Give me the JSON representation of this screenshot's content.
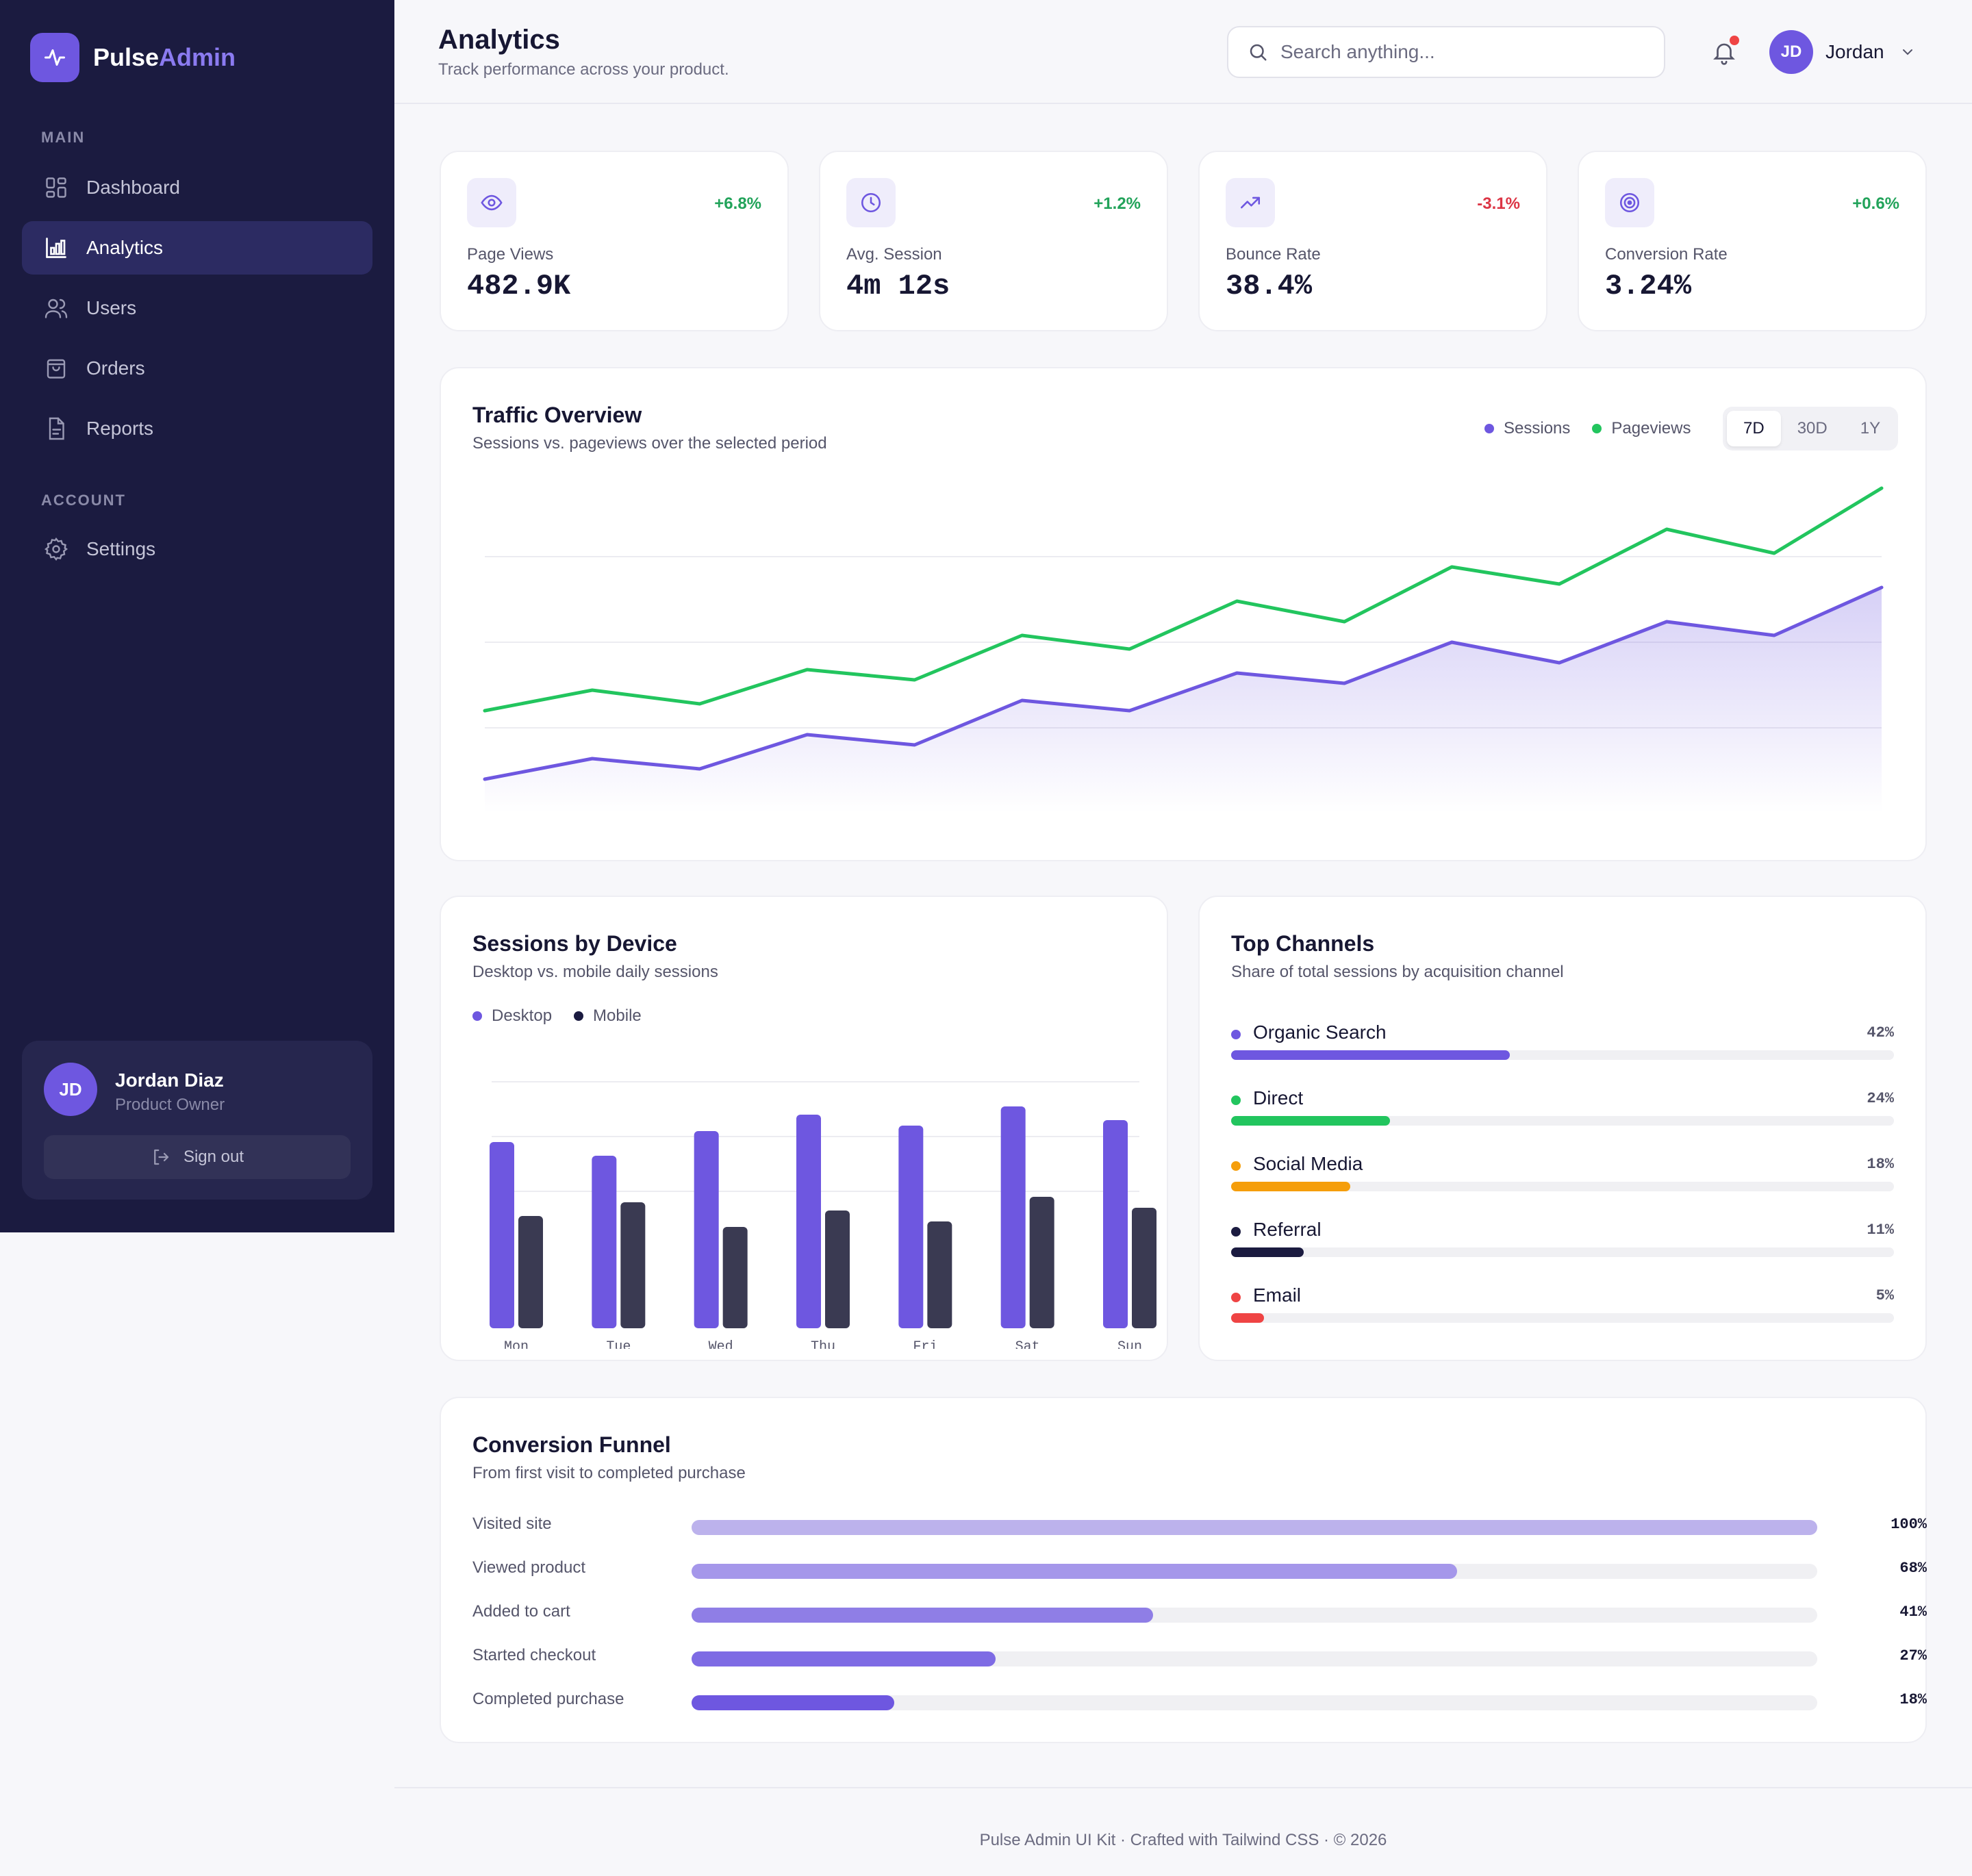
{
  "brand": {
    "name_part1": "Pulse",
    "name_part2": "Admin"
  },
  "sidebar": {
    "sections": [
      {
        "title": "MAIN",
        "items": [
          {
            "label": "Dashboard",
            "icon": "grid-icon"
          },
          {
            "label": "Analytics",
            "icon": "bar-chart-icon",
            "active": true
          },
          {
            "label": "Users",
            "icon": "users-icon"
          },
          {
            "label": "Orders",
            "icon": "shopping-bag-icon"
          },
          {
            "label": "Reports",
            "icon": "document-icon"
          }
        ]
      },
      {
        "title": "ACCOUNT",
        "items": [
          {
            "label": "Settings",
            "icon": "gear-icon"
          }
        ]
      }
    ],
    "user": {
      "initials": "JD",
      "name": "Jordan Diaz",
      "role": "Product Owner",
      "signout_label": "Sign out"
    }
  },
  "header": {
    "title": "Analytics",
    "subtitle": "Track performance across your product.",
    "search_placeholder": "Search anything...",
    "has_notification": true,
    "user_initials": "JD",
    "user_name": "Jordan"
  },
  "kpis": [
    {
      "label": "Page Views",
      "value": "482.9K",
      "delta": "+6.8%",
      "trend": "up",
      "icon": "eye-icon"
    },
    {
      "label": "Avg. Session",
      "value": "4m 12s",
      "delta": "+1.2%",
      "trend": "up",
      "icon": "clock-icon"
    },
    {
      "label": "Bounce Rate",
      "value": "38.4%",
      "delta": "-3.1%",
      "trend": "down",
      "icon": "trending-up-icon"
    },
    {
      "label": "Conversion Rate",
      "value": "3.24%",
      "delta": "+0.6%",
      "trend": "up",
      "icon": "target-icon"
    }
  ],
  "traffic": {
    "title": "Traffic Overview",
    "subtitle": "Sessions vs. pageviews over the selected period",
    "legend": [
      "Sessions",
      "Pageviews"
    ],
    "ranges": [
      "7D",
      "30D",
      "1Y"
    ],
    "selected_range": "7D"
  },
  "devices": {
    "title": "Sessions by Device",
    "subtitle": "Desktop vs. mobile daily sessions",
    "legend": [
      "Desktop",
      "Mobile"
    ]
  },
  "channels": {
    "title": "Top Channels",
    "subtitle": "Share of total sessions by acquisition channel",
    "items": [
      {
        "name": "Organic Search",
        "pct_label": "42%",
        "value": 42,
        "color": "#6e57e0"
      },
      {
        "name": "Direct",
        "pct_label": "24%",
        "value": 24,
        "color": "#22c55e"
      },
      {
        "name": "Social Media",
        "pct_label": "18%",
        "value": 18,
        "color": "#f59e0b"
      },
      {
        "name": "Referral",
        "pct_label": "11%",
        "value": 11,
        "color": "#1b1b40"
      },
      {
        "name": "Email",
        "pct_label": "5%",
        "value": 5,
        "color": "#ef4444"
      }
    ]
  },
  "funnel": {
    "title": "Conversion Funnel",
    "subtitle": "From first visit to completed purchase",
    "steps": [
      {
        "label": "Visited site",
        "pct_label": "100%",
        "value": 100,
        "color": "#bcb2ec"
      },
      {
        "label": "Viewed product",
        "pct_label": "68%",
        "value": 68,
        "color": "#a597ea"
      },
      {
        "label": "Added to cart",
        "pct_label": "41%",
        "value": 41,
        "color": "#8f7ee6"
      },
      {
        "label": "Started checkout",
        "pct_label": "27%",
        "value": 27,
        "color": "#7e6be4"
      },
      {
        "label": "Completed purchase",
        "pct_label": "18%",
        "value": 18,
        "color": "#6e57e0"
      }
    ]
  },
  "footer": {
    "text": "Pulse Admin UI Kit · Crafted with Tailwind CSS · © 2026"
  },
  "colors": {
    "accent": "#6e57e0",
    "green": "#22c55e",
    "sidebar": "#1b1b40",
    "mobile_bar": "#3a3a52"
  },
  "chart_data": [
    {
      "type": "line",
      "x": [
        "1",
        "2",
        "3",
        "4",
        "5",
        "6",
        "7",
        "8",
        "9",
        "10",
        "11",
        "12",
        "13",
        "14"
      ],
      "series": [
        {
          "name": "Sessions",
          "values": [
            10,
            16,
            13,
            23,
            20,
            33,
            30,
            41,
            38,
            50,
            44,
            56,
            52,
            66
          ],
          "color": "#6e57e0",
          "fill": true
        },
        {
          "name": "Pageviews",
          "values": [
            30,
            36,
            32,
            42,
            39,
            52,
            48,
            62,
            56,
            72,
            67,
            83,
            76,
            95
          ],
          "color": "#22c55e"
        }
      ],
      "ylim": [
        0,
        100
      ],
      "grid": true
    },
    {
      "type": "bar",
      "categories": [
        "Mon",
        "Tue",
        "Wed",
        "Thu",
        "Fri",
        "Sat",
        "Sun"
      ],
      "series": [
        {
          "name": "Desktop",
          "values": [
            68,
            63,
            72,
            78,
            74,
            81,
            76
          ],
          "color": "#6e57e0"
        },
        {
          "name": "Mobile",
          "values": [
            41,
            46,
            37,
            43,
            39,
            48,
            44
          ],
          "color": "#3a3a52"
        }
      ],
      "ylim": [
        0,
        100
      ],
      "grid": true
    }
  ]
}
